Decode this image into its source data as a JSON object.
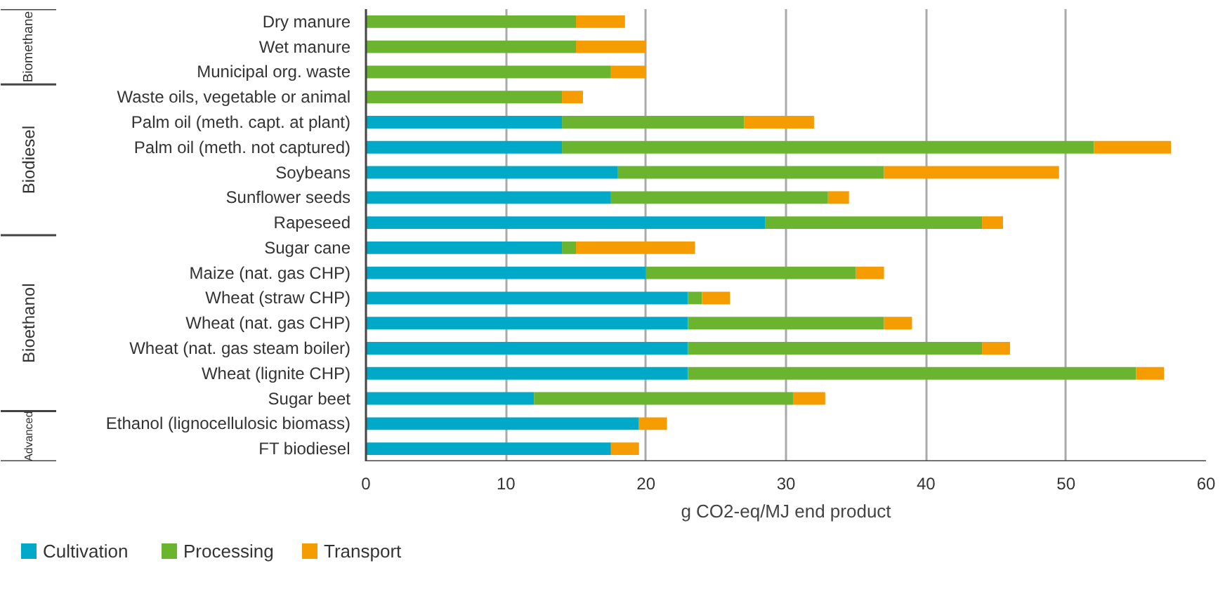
{
  "chart_data": {
    "type": "bar",
    "orientation": "horizontal",
    "stacked": true,
    "categories": [
      "Dry manure",
      "Wet manure",
      "Municipal org. waste",
      "Waste oils, vegetable or animal",
      "Palm oil (meth. capt. at plant)",
      "Palm oil (meth. not captured)",
      "Soybeans",
      "Sunflower seeds",
      "Rapeseed",
      "Sugar cane",
      "Maize (nat. gas CHP)",
      "Wheat (straw CHP)",
      "Wheat (nat. gas CHP)",
      "Wheat (nat. gas steam boiler)",
      "Wheat (lignite CHP)",
      "Sugar beet",
      "Ethanol (lignocellulosic biomass)",
      "FT biodiesel"
    ],
    "series": [
      {
        "name": "Cultivation",
        "color": "#00a9c8",
        "values": [
          0,
          0,
          0,
          0,
          14,
          14,
          18,
          17.5,
          28.5,
          14,
          20,
          23,
          23,
          23,
          23,
          12,
          19.5,
          17.5
        ]
      },
      {
        "name": "Processing",
        "color": "#6ab42f",
        "values": [
          15,
          15,
          17.5,
          14,
          13,
          38,
          19,
          15.5,
          15.5,
          1,
          15,
          1,
          14,
          21,
          32,
          18.5,
          0,
          0
        ]
      },
      {
        "name": "Transport",
        "color": "#f59c00",
        "values": [
          3.5,
          5,
          2.5,
          1.5,
          5,
          5.5,
          12.5,
          1.5,
          1.5,
          8.5,
          2,
          2,
          2,
          2,
          2,
          2.3,
          2,
          2
        ]
      }
    ],
    "xlabel": "g CO2-eq/MJ end product",
    "xlim": [
      0,
      60
    ],
    "xticks": [
      0,
      10,
      20,
      30,
      40,
      50,
      60
    ],
    "grid": "x",
    "legend": "bottom",
    "annotations": [
      "Biomethane",
      "Biodiesel",
      "Bioethanol",
      "Advanced"
    ]
  }
}
